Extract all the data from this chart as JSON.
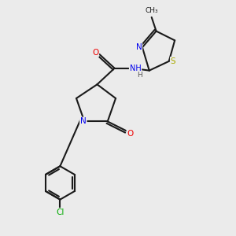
{
  "background_color": "#ebebeb",
  "bond_color": "#1a1a1a",
  "atom_colors": {
    "N": "#0000ee",
    "O": "#ee0000",
    "S": "#aaaa00",
    "Cl": "#00aa00",
    "C": "#1a1a1a",
    "H": "#555555"
  },
  "figsize": [
    3.0,
    3.0
  ],
  "dpi": 100
}
